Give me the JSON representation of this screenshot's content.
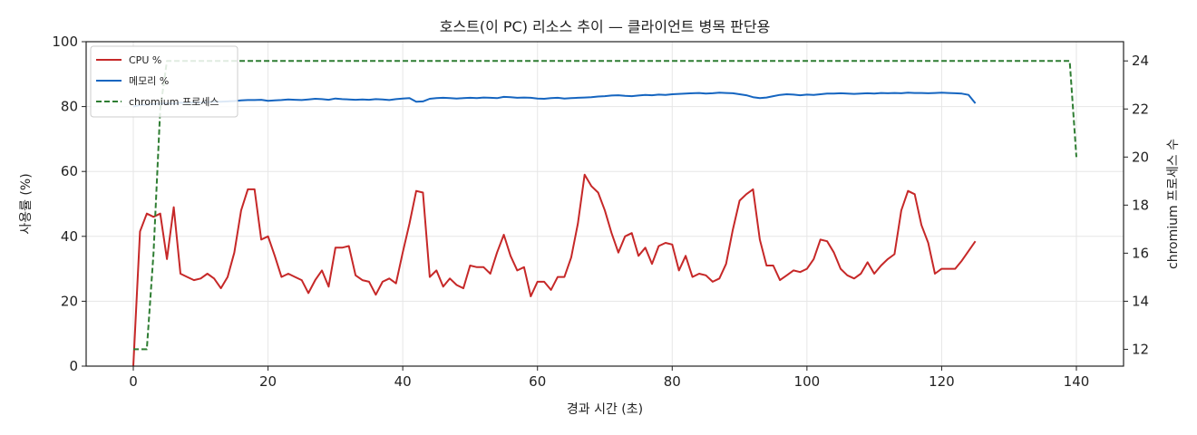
{
  "chart_data": {
    "type": "line",
    "title": "호스트(이 PC) 리소스 추이 — 클라이언트 병목 판단용",
    "xlabel": "경과 시간 (초)",
    "ylabel": "사용률 (%)",
    "y2label": "chromium 프로세스 수",
    "xlim": [
      -7,
      147
    ],
    "ylim": [
      0,
      100
    ],
    "y2lim": [
      11.3,
      24.8
    ],
    "xticks": [
      0,
      20,
      40,
      60,
      80,
      100,
      120,
      140
    ],
    "yticks": [
      0,
      20,
      40,
      60,
      80,
      100
    ],
    "y2ticks": [
      12,
      14,
      16,
      18,
      20,
      22,
      24
    ],
    "grid": true,
    "legend_position": "top-left",
    "series": [
      {
        "name": "CPU %",
        "axis": "left",
        "color": "#c62828",
        "style": "solid",
        "points": [
          [
            0,
            0
          ],
          [
            1,
            41.5
          ],
          [
            2,
            47
          ],
          [
            3,
            46
          ],
          [
            4,
            47
          ],
          [
            5,
            33
          ],
          [
            6,
            49
          ],
          [
            7,
            28.5
          ],
          [
            8,
            27.5
          ],
          [
            9,
            26.5
          ],
          [
            10,
            27
          ],
          [
            11,
            28.5
          ],
          [
            12,
            27
          ],
          [
            13,
            24
          ],
          [
            14,
            27.5
          ],
          [
            15,
            35
          ],
          [
            16,
            48
          ],
          [
            17,
            54.5
          ],
          [
            18,
            54.5
          ],
          [
            19,
            39
          ],
          [
            20,
            40
          ],
          [
            21,
            34
          ],
          [
            22,
            27.5
          ],
          [
            23,
            28.5
          ],
          [
            24,
            27.5
          ],
          [
            25,
            26.5
          ],
          [
            26,
            22.5
          ],
          [
            27,
            26.5
          ],
          [
            28,
            29.5
          ],
          [
            29,
            24.5
          ],
          [
            30,
            36.5
          ],
          [
            31,
            36.5
          ],
          [
            32,
            37
          ],
          [
            33,
            28
          ],
          [
            34,
            26.5
          ],
          [
            35,
            26
          ],
          [
            36,
            22
          ],
          [
            37,
            26
          ],
          [
            38,
            27
          ],
          [
            39,
            25.5
          ],
          [
            40,
            35
          ],
          [
            41,
            44
          ],
          [
            42,
            54
          ],
          [
            43,
            53.5
          ],
          [
            44,
            27.5
          ],
          [
            45,
            29.5
          ],
          [
            46,
            24.5
          ],
          [
            47,
            27
          ],
          [
            48,
            25
          ],
          [
            49,
            24
          ],
          [
            50,
            31
          ],
          [
            51,
            30.5
          ],
          [
            52,
            30.5
          ],
          [
            53,
            28.5
          ],
          [
            54,
            35
          ],
          [
            55,
            40.5
          ],
          [
            56,
            34
          ],
          [
            57,
            29.5
          ],
          [
            58,
            30.5
          ],
          [
            59,
            21.5
          ],
          [
            60,
            26
          ],
          [
            61,
            26
          ],
          [
            62,
            23.5
          ],
          [
            63,
            27.5
          ],
          [
            64,
            27.5
          ],
          [
            65,
            33.5
          ],
          [
            66,
            44
          ],
          [
            67,
            59
          ],
          [
            68,
            55.5
          ],
          [
            69,
            53.5
          ],
          [
            70,
            48
          ],
          [
            71,
            41
          ],
          [
            72,
            35
          ],
          [
            73,
            40
          ],
          [
            74,
            41
          ],
          [
            75,
            34
          ],
          [
            76,
            36.5
          ],
          [
            77,
            31.5
          ],
          [
            78,
            37
          ],
          [
            79,
            38
          ],
          [
            80,
            37.5
          ],
          [
            81,
            29.5
          ],
          [
            82,
            34
          ],
          [
            83,
            27.5
          ],
          [
            84,
            28.5
          ],
          [
            85,
            28
          ],
          [
            86,
            26
          ],
          [
            87,
            27
          ],
          [
            88,
            31.5
          ],
          [
            89,
            42
          ],
          [
            90,
            51
          ],
          [
            91,
            53
          ],
          [
            92,
            54.5
          ],
          [
            93,
            39
          ],
          [
            94,
            31
          ],
          [
            95,
            31
          ],
          [
            96,
            26.5
          ],
          [
            97,
            28
          ],
          [
            98,
            29.5
          ],
          [
            99,
            29
          ],
          [
            100,
            30
          ],
          [
            101,
            33
          ],
          [
            102,
            39
          ],
          [
            103,
            38.5
          ],
          [
            104,
            35
          ],
          [
            105,
            30
          ],
          [
            106,
            28
          ],
          [
            107,
            27
          ],
          [
            108,
            28.5
          ],
          [
            109,
            32
          ],
          [
            110,
            28.5
          ],
          [
            111,
            31
          ],
          [
            112,
            33
          ],
          [
            113,
            34.5
          ],
          [
            114,
            48
          ],
          [
            115,
            54
          ],
          [
            116,
            53
          ],
          [
            117,
            43.5
          ],
          [
            118,
            38
          ],
          [
            119,
            28.5
          ],
          [
            120,
            30
          ],
          [
            121,
            30
          ],
          [
            122,
            30
          ],
          [
            123,
            32.5
          ],
          [
            124,
            35.5
          ],
          [
            125,
            38.5
          ]
        ]
      },
      {
        "name": "메모리 %",
        "axis": "left",
        "color": "#1565c0",
        "style": "solid",
        "points": [
          [
            0,
            80
          ],
          [
            1,
            80.5
          ],
          [
            2,
            80.6
          ],
          [
            3,
            80.8
          ],
          [
            4,
            80.9
          ],
          [
            5,
            81
          ],
          [
            6,
            80.9
          ],
          [
            7,
            81.2
          ],
          [
            8,
            81.1
          ],
          [
            9,
            81.3
          ],
          [
            10,
            81.2
          ],
          [
            11,
            81.4
          ],
          [
            12,
            81.5
          ],
          [
            13,
            81.5
          ],
          [
            14,
            81.6
          ],
          [
            15,
            81.7
          ],
          [
            16,
            81.9
          ],
          [
            17,
            82
          ],
          [
            18,
            82
          ],
          [
            19,
            82.1
          ],
          [
            20,
            81.8
          ],
          [
            21,
            81.9
          ],
          [
            22,
            82
          ],
          [
            23,
            82.2
          ],
          [
            24,
            82.1
          ],
          [
            25,
            82
          ],
          [
            26,
            82.2
          ],
          [
            27,
            82.4
          ],
          [
            28,
            82.3
          ],
          [
            29,
            82.1
          ],
          [
            30,
            82.5
          ],
          [
            31,
            82.3
          ],
          [
            32,
            82.2
          ],
          [
            33,
            82.1
          ],
          [
            34,
            82.2
          ],
          [
            35,
            82.1
          ],
          [
            36,
            82.3
          ],
          [
            37,
            82.2
          ],
          [
            38,
            82
          ],
          [
            39,
            82.3
          ],
          [
            40,
            82.5
          ],
          [
            41,
            82.6
          ],
          [
            42,
            81.5
          ],
          [
            43,
            81.6
          ],
          [
            44,
            82.4
          ],
          [
            45,
            82.6
          ],
          [
            46,
            82.7
          ],
          [
            47,
            82.6
          ],
          [
            48,
            82.5
          ],
          [
            49,
            82.6
          ],
          [
            50,
            82.7
          ],
          [
            51,
            82.6
          ],
          [
            52,
            82.8
          ],
          [
            53,
            82.7
          ],
          [
            54,
            82.6
          ],
          [
            55,
            83
          ],
          [
            56,
            82.9
          ],
          [
            57,
            82.7
          ],
          [
            58,
            82.8
          ],
          [
            59,
            82.7
          ],
          [
            60,
            82.5
          ],
          [
            61,
            82.4
          ],
          [
            62,
            82.6
          ],
          [
            63,
            82.7
          ],
          [
            64,
            82.5
          ],
          [
            65,
            82.6
          ],
          [
            66,
            82.7
          ],
          [
            67,
            82.8
          ],
          [
            68,
            82.9
          ],
          [
            69,
            83.1
          ],
          [
            70,
            83.2
          ],
          [
            71,
            83.4
          ],
          [
            72,
            83.5
          ],
          [
            73,
            83.3
          ],
          [
            74,
            83.2
          ],
          [
            75,
            83.4
          ],
          [
            76,
            83.6
          ],
          [
            77,
            83.5
          ],
          [
            78,
            83.7
          ],
          [
            79,
            83.6
          ],
          [
            80,
            83.8
          ],
          [
            81,
            83.9
          ],
          [
            82,
            84
          ],
          [
            83,
            84.1
          ],
          [
            84,
            84.2
          ],
          [
            85,
            84
          ],
          [
            86,
            84.1
          ],
          [
            87,
            84.3
          ],
          [
            88,
            84.2
          ],
          [
            89,
            84.1
          ],
          [
            90,
            83.8
          ],
          [
            91,
            83.5
          ],
          [
            92,
            82.9
          ],
          [
            93,
            82.6
          ],
          [
            94,
            82.8
          ],
          [
            95,
            83.2
          ],
          [
            96,
            83.6
          ],
          [
            97,
            83.8
          ],
          [
            98,
            83.7
          ],
          [
            99,
            83.5
          ],
          [
            100,
            83.7
          ],
          [
            101,
            83.6
          ],
          [
            102,
            83.8
          ],
          [
            103,
            84
          ],
          [
            104,
            84
          ],
          [
            105,
            84.1
          ],
          [
            106,
            84
          ],
          [
            107,
            83.9
          ],
          [
            108,
            84
          ],
          [
            109,
            84.1
          ],
          [
            110,
            84
          ],
          [
            111,
            84.2
          ],
          [
            112,
            84.1
          ],
          [
            113,
            84.2
          ],
          [
            114,
            84.1
          ],
          [
            115,
            84.3
          ],
          [
            116,
            84.2
          ],
          [
            117,
            84.2
          ],
          [
            118,
            84.1
          ],
          [
            119,
            84.2
          ],
          [
            120,
            84.3
          ],
          [
            121,
            84.2
          ],
          [
            122,
            84.1
          ],
          [
            123,
            84
          ],
          [
            124,
            83.6
          ],
          [
            125,
            81
          ]
        ]
      },
      {
        "name": "chromium 프로세스",
        "axis": "right",
        "color": "#2e7d32",
        "style": "dashed",
        "points": [
          [
            0,
            12
          ],
          [
            2,
            12
          ],
          [
            3,
            16
          ],
          [
            4,
            22
          ],
          [
            5,
            24
          ],
          [
            139,
            24
          ],
          [
            140,
            20
          ]
        ]
      }
    ]
  }
}
